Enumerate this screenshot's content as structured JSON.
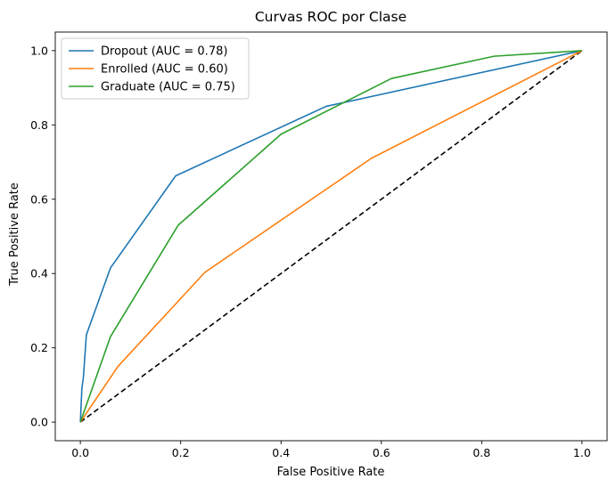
{
  "chart_data": {
    "type": "line",
    "title": "Curvas ROC por Clase",
    "xlabel": "False Positive Rate",
    "ylabel": "True Positive Rate",
    "xlim": [
      -0.05,
      1.05
    ],
    "ylim": [
      -0.05,
      1.05
    ],
    "xticks": [
      0.0,
      0.2,
      0.4,
      0.6,
      0.8,
      1.0
    ],
    "xtick_labels": [
      "0.0",
      "0.2",
      "0.4",
      "0.6",
      "0.8",
      "1.0"
    ],
    "yticks": [
      0.0,
      0.2,
      0.4,
      0.6,
      0.8,
      1.0
    ],
    "ytick_labels": [
      "0.0",
      "0.2",
      "0.4",
      "0.6",
      "0.8",
      "1.0"
    ],
    "grid": false,
    "legend_position": "top-left",
    "series": [
      {
        "name": "Dropout (AUC = 0.78)",
        "color": "#1f77b4",
        "x": [
          0.0,
          0.003,
          0.006,
          0.012,
          0.06,
          0.19,
          0.49,
          1.0
        ],
        "y": [
          0.0,
          0.09,
          0.12,
          0.235,
          0.415,
          0.663,
          0.85,
          1.0
        ]
      },
      {
        "name": "Enrolled (AUC = 0.60)",
        "color": "#ff7f0e",
        "x": [
          0.0,
          0.075,
          0.248,
          0.58,
          1.0
        ],
        "y": [
          0.0,
          0.15,
          0.403,
          0.71,
          1.0
        ]
      },
      {
        "name": "Graduate (AUC = 0.75)",
        "color": "#2ca02c",
        "x": [
          0.0,
          0.06,
          0.195,
          0.4,
          0.62,
          0.825,
          1.0
        ],
        "y": [
          0.0,
          0.23,
          0.53,
          0.775,
          0.925,
          0.985,
          1.0
        ]
      }
    ],
    "reference_line": {
      "style": "dashed",
      "color": "#000000",
      "x": [
        0.0,
        1.0
      ],
      "y": [
        0.0,
        1.0
      ]
    }
  }
}
